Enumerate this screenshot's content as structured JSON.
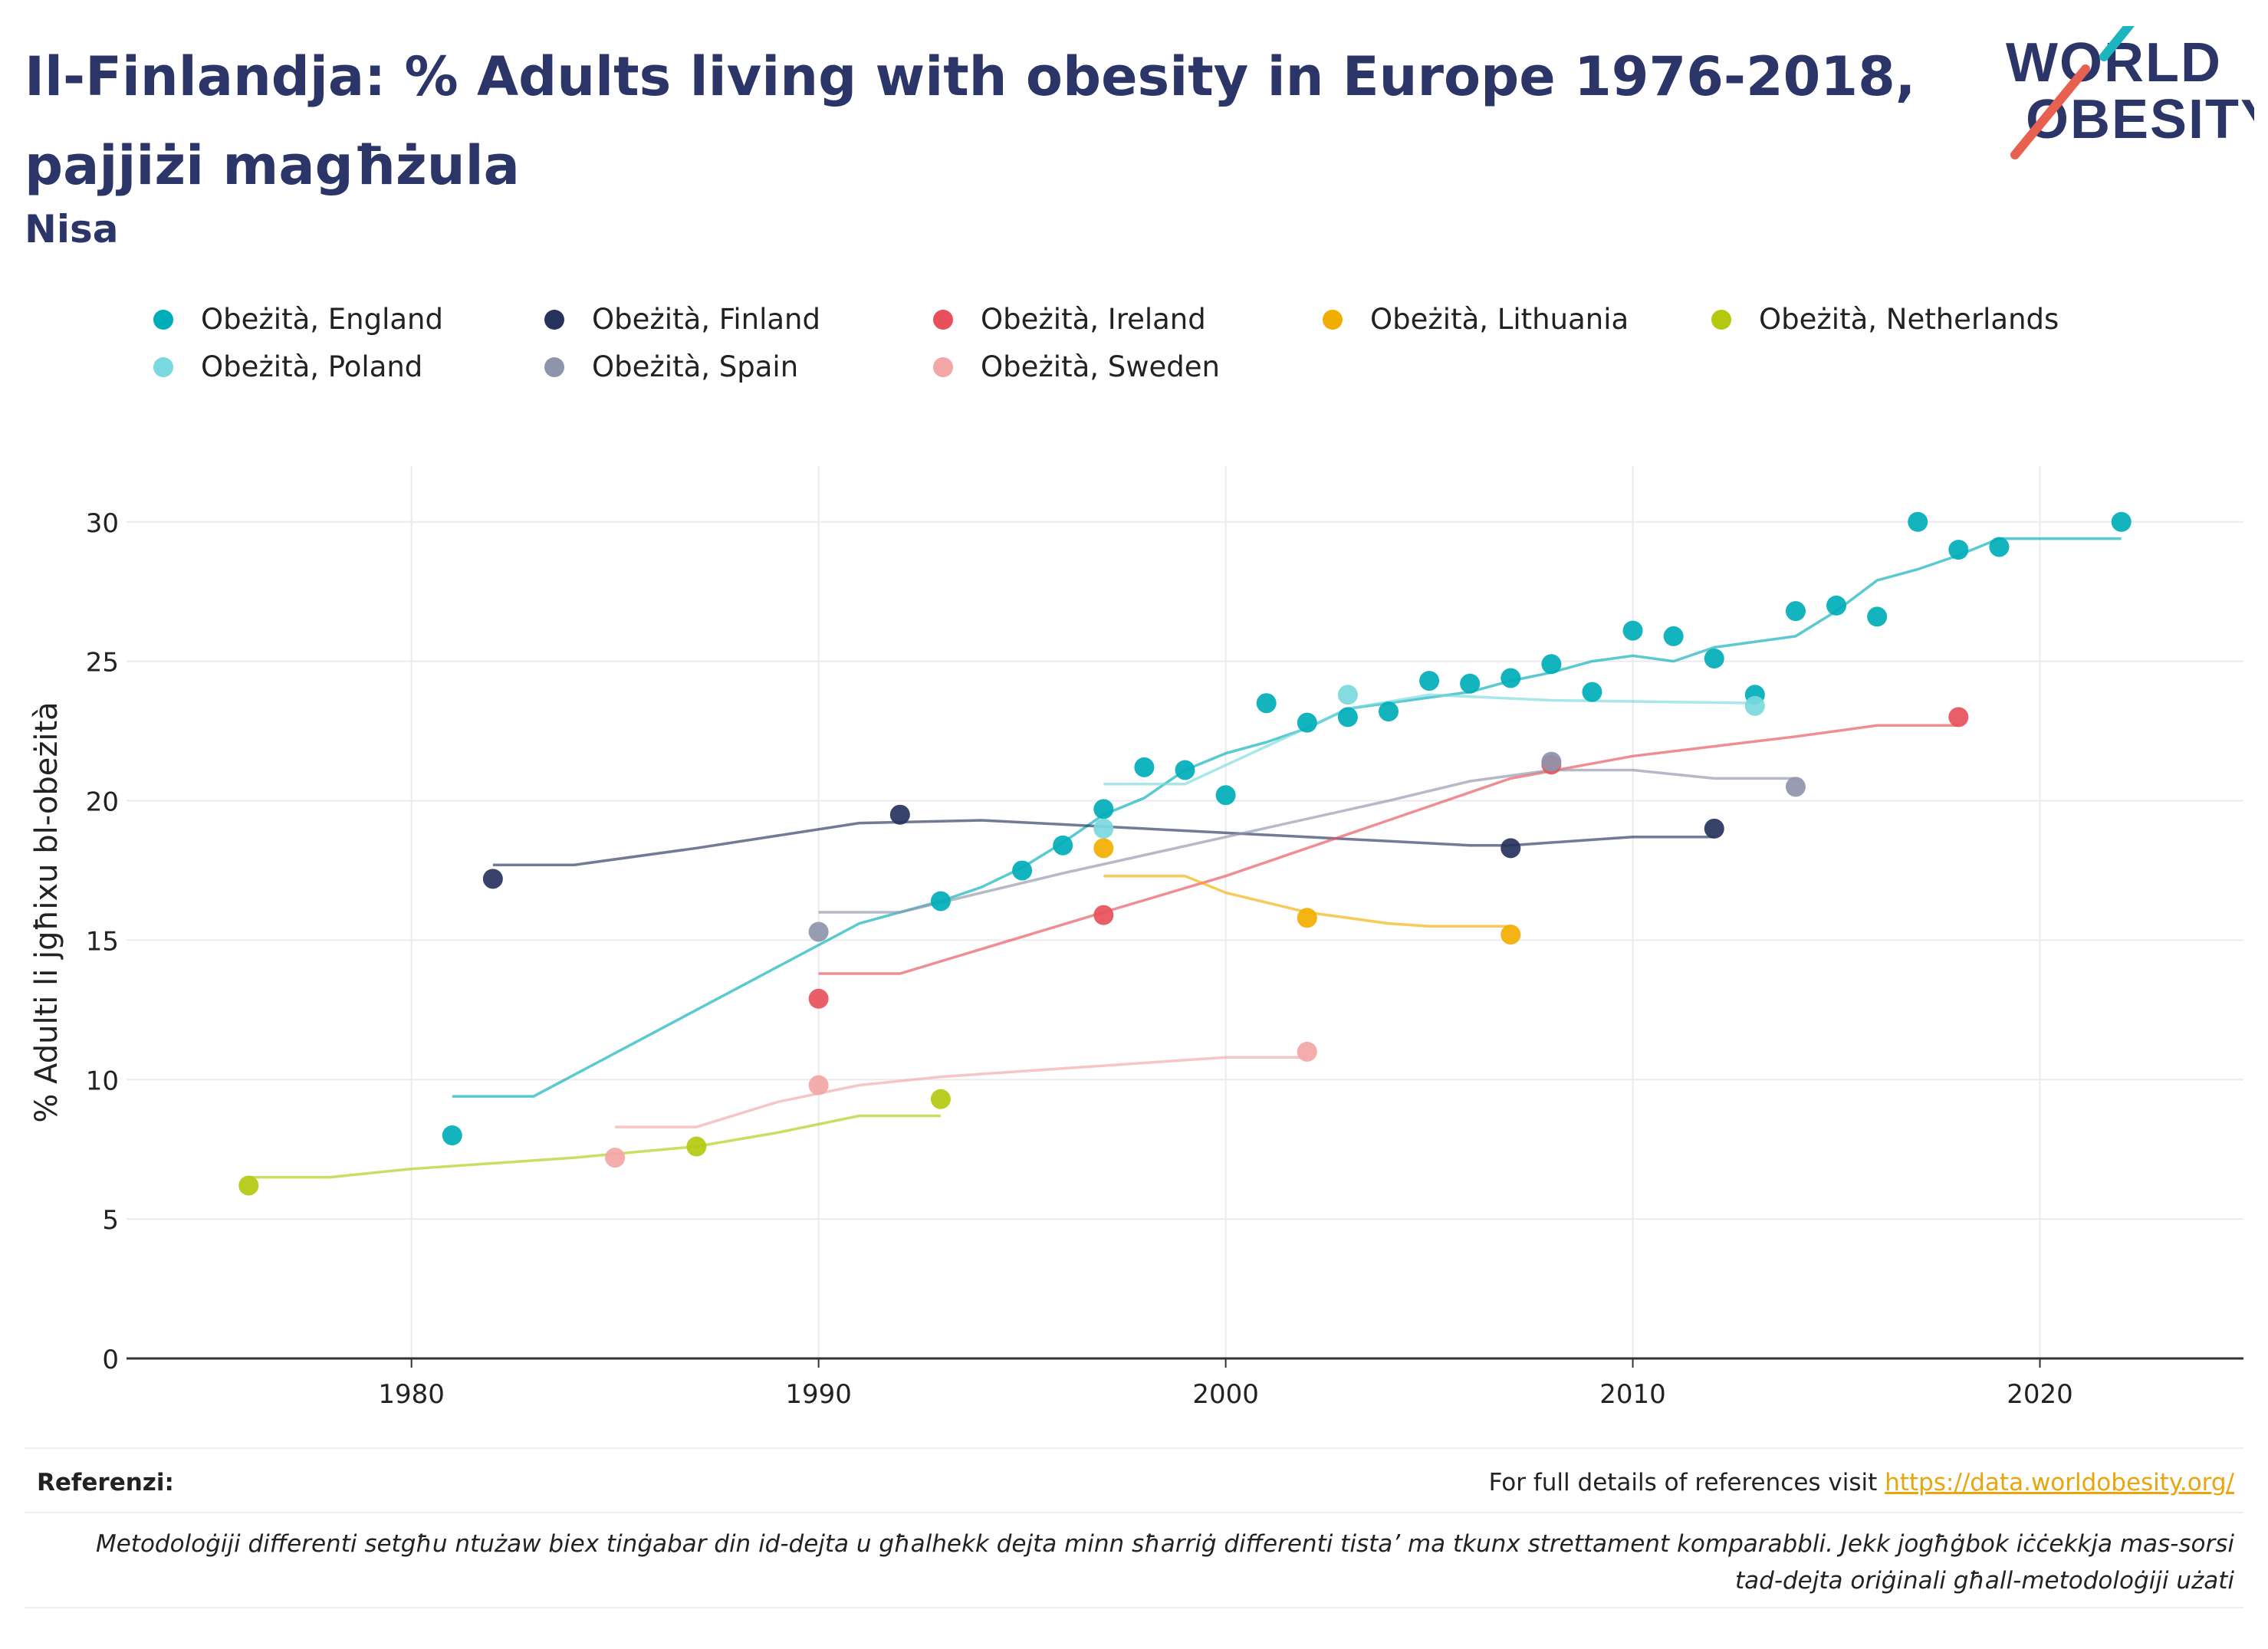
{
  "header": {
    "title": "Il-Finlandja: % Adults living with obesity in Europe 1976-2018, pajjiżi magħżula",
    "subtitle": "Nisa",
    "logo_text_1": "WORLD",
    "logo_text_2": "OBESITY"
  },
  "footer": {
    "references_label": "Referenzi:",
    "references_text": "For full details of references visit ",
    "references_link": "https://data.worldobesity.org/",
    "methodology_note": "Metodoloġiji differenti setgħu ntużaw biex tinġabar din id-dejta u għalhekk dejta minn sħarriġ differenti tista’ ma tkunx strettament komparabbli. Jekk jogħġbok iċċekkja mas-sorsi tad-dejta oriġinali għall-metodoloġiji użati"
  },
  "colors": {
    "title": "#2b3567",
    "logo_accent_teal": "#1bb5be",
    "logo_accent_red": "#e8604f",
    "link": "#e8a50d"
  },
  "chart_data": {
    "type": "scatter",
    "ylabel": "% Adulti li jgħixu bl-obeżità",
    "xlabel": "",
    "xlim": [
      1973,
      2025
    ],
    "ylim": [
      0,
      32
    ],
    "xticks": [
      1980,
      1990,
      2000,
      2010,
      2020
    ],
    "yticks": [
      0,
      5,
      10,
      15,
      20,
      25,
      30
    ],
    "grid": true,
    "legend_position": "top",
    "series": [
      {
        "name": "Obeżità, England",
        "color": "#00aeb9",
        "points": [
          [
            1981,
            8.0
          ],
          [
            1993,
            16.4
          ],
          [
            1995,
            17.5
          ],
          [
            1996,
            18.4
          ],
          [
            1997,
            19.7
          ],
          [
            1998,
            21.2
          ],
          [
            1999,
            21.1
          ],
          [
            2000,
            20.2
          ],
          [
            2001,
            23.5
          ],
          [
            2002,
            22.8
          ],
          [
            2003,
            23.0
          ],
          [
            2004,
            23.2
          ],
          [
            2005,
            24.3
          ],
          [
            2006,
            24.2
          ],
          [
            2007,
            24.4
          ],
          [
            2008,
            24.9
          ],
          [
            2009,
            23.9
          ],
          [
            2010,
            26.1
          ],
          [
            2011,
            25.9
          ],
          [
            2012,
            25.1
          ],
          [
            2013,
            23.8
          ],
          [
            2014,
            26.8
          ],
          [
            2015,
            27.0
          ],
          [
            2016,
            26.6
          ],
          [
            2017,
            30.0
          ],
          [
            2018,
            29.0
          ],
          [
            2019,
            29.1
          ],
          [
            2022,
            30.0
          ]
        ],
        "trend": [
          [
            1981,
            9.4
          ],
          [
            1983,
            9.4
          ],
          [
            1991,
            15.6
          ],
          [
            1993,
            16.4
          ],
          [
            1994,
            16.9
          ],
          [
            1995,
            17.6
          ],
          [
            1996,
            18.5
          ],
          [
            1997,
            19.5
          ],
          [
            1998,
            20.1
          ],
          [
            1999,
            21.1
          ],
          [
            2000,
            21.7
          ],
          [
            2001,
            22.1
          ],
          [
            2002,
            22.6
          ],
          [
            2003,
            23.3
          ],
          [
            2004,
            23.5
          ],
          [
            2005,
            23.7
          ],
          [
            2006,
            23.9
          ],
          [
            2007,
            24.3
          ],
          [
            2008,
            24.6
          ],
          [
            2009,
            25.0
          ],
          [
            2010,
            25.2
          ],
          [
            2011,
            25.0
          ],
          [
            2012,
            25.5
          ],
          [
            2013,
            25.7
          ],
          [
            2014,
            25.9
          ],
          [
            2015,
            26.8
          ],
          [
            2016,
            27.9
          ],
          [
            2017,
            28.3
          ],
          [
            2018,
            28.8
          ],
          [
            2019,
            29.4
          ],
          [
            2022,
            29.4
          ]
        ]
      },
      {
        "name": "Obeżità, Finland",
        "color": "#27325d",
        "points": [
          [
            1982,
            17.2
          ],
          [
            1992,
            19.5
          ],
          [
            2007,
            18.3
          ],
          [
            2012,
            19.0
          ]
        ],
        "trend": [
          [
            1982,
            17.7
          ],
          [
            1984,
            17.7
          ],
          [
            1987,
            18.3
          ],
          [
            1991,
            19.2
          ],
          [
            1994,
            19.3
          ],
          [
            1998,
            19.0
          ],
          [
            2002,
            18.7
          ],
          [
            2006,
            18.4
          ],
          [
            2007,
            18.4
          ],
          [
            2009,
            18.6
          ],
          [
            2010,
            18.7
          ],
          [
            2012,
            18.7
          ]
        ]
      },
      {
        "name": "Obeżità, Ireland",
        "color": "#e8505b",
        "points": [
          [
            1990,
            12.9
          ],
          [
            1997,
            15.9
          ],
          [
            2008,
            21.3
          ],
          [
            2018,
            23.0
          ]
        ],
        "trend": [
          [
            1990,
            13.8
          ],
          [
            1992,
            13.8
          ],
          [
            1997,
            16.0
          ],
          [
            2000,
            17.3
          ],
          [
            2003,
            18.8
          ],
          [
            2007,
            20.8
          ],
          [
            2010,
            21.6
          ],
          [
            2014,
            22.3
          ],
          [
            2016,
            22.7
          ],
          [
            2018,
            22.7
          ]
        ]
      },
      {
        "name": "Obeżità, Lithuania",
        "color": "#f2ae00",
        "points": [
          [
            1997,
            18.3
          ],
          [
            2002,
            15.8
          ],
          [
            2007,
            15.2
          ]
        ],
        "trend": [
          [
            1997,
            17.3
          ],
          [
            1999,
            17.3
          ],
          [
            2000,
            16.7
          ],
          [
            2002,
            16.0
          ],
          [
            2004,
            15.6
          ],
          [
            2005,
            15.5
          ],
          [
            2007,
            15.5
          ]
        ]
      },
      {
        "name": "Obeżità, Netherlands",
        "color": "#b3c90f",
        "points": [
          [
            1976,
            6.2
          ],
          [
            1987,
            7.6
          ],
          [
            1993,
            9.3
          ]
        ],
        "trend": [
          [
            1976,
            6.5
          ],
          [
            1978,
            6.5
          ],
          [
            1980,
            6.8
          ],
          [
            1984,
            7.2
          ],
          [
            1987,
            7.6
          ],
          [
            1989,
            8.1
          ],
          [
            1991,
            8.7
          ],
          [
            1993,
            8.7
          ]
        ]
      },
      {
        "name": "Obeżità, Poland",
        "color": "#79d9de",
        "points": [
          [
            1997,
            19.0
          ],
          [
            2003,
            23.8
          ],
          [
            2013,
            23.4
          ]
        ],
        "trend": [
          [
            1997,
            20.6
          ],
          [
            1999,
            20.6
          ],
          [
            2003,
            23.3
          ],
          [
            2005,
            23.8
          ],
          [
            2008,
            23.6
          ],
          [
            2013,
            23.5
          ]
        ]
      },
      {
        "name": "Obeżità, Spain",
        "color": "#8e94ab",
        "points": [
          [
            1990,
            15.3
          ],
          [
            2008,
            21.4
          ],
          [
            2014,
            20.5
          ]
        ],
        "trend": [
          [
            1990,
            16.0
          ],
          [
            1992,
            16.0
          ],
          [
            1996,
            17.4
          ],
          [
            2000,
            18.7
          ],
          [
            2004,
            20.0
          ],
          [
            2006,
            20.7
          ],
          [
            2008,
            21.1
          ],
          [
            2010,
            21.1
          ],
          [
            2012,
            20.8
          ],
          [
            2014,
            20.8
          ]
        ]
      },
      {
        "name": "Obeżità, Sweden",
        "color": "#f2a6a6",
        "points": [
          [
            1985,
            7.2
          ],
          [
            1990,
            9.8
          ],
          [
            2002,
            11.0
          ]
        ],
        "trend": [
          [
            1985,
            8.3
          ],
          [
            1987,
            8.3
          ],
          [
            1989,
            9.2
          ],
          [
            1991,
            9.8
          ],
          [
            1993,
            10.1
          ],
          [
            1997,
            10.5
          ],
          [
            2000,
            10.8
          ],
          [
            2002,
            10.8
          ]
        ]
      }
    ]
  }
}
